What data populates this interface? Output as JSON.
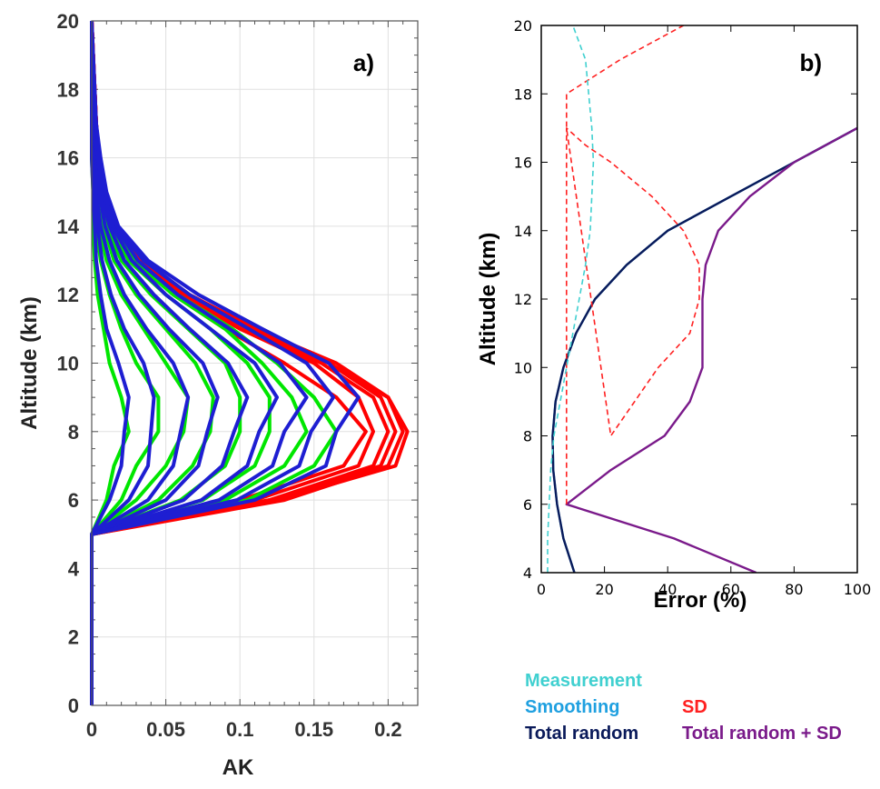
{
  "chart_data": [
    {
      "type": "line",
      "panel_label": "a)",
      "xlabel": "AK",
      "ylabel": "Altitude (km)",
      "xlim": [
        0,
        0.22
      ],
      "ylim": [
        0,
        20
      ],
      "xticks": [
        "0",
        "0.05",
        "0.1",
        "0.15",
        "0.2"
      ],
      "yticks": [
        "0",
        "2",
        "4",
        "6",
        "8",
        "10",
        "12",
        "14",
        "16",
        "18",
        "20"
      ],
      "grid": true,
      "colors": {
        "red": "#ff0000",
        "green": "#00e600",
        "blue": "#1e1ed2"
      },
      "altitudes": [
        0,
        5,
        6,
        7,
        8,
        9,
        10,
        11,
        12,
        13,
        14,
        15,
        16,
        17,
        18,
        19,
        20
      ],
      "series": [
        {
          "color": "red",
          "values": [
            0,
            0,
            0.1,
            0.17,
            0.185,
            0.165,
            0.13,
            0.09,
            0.055,
            0.03,
            0.015,
            0.008,
            0.005,
            0.003,
            0.002,
            0.001,
            0
          ]
        },
        {
          "color": "red",
          "values": [
            0,
            0,
            0.11,
            0.18,
            0.19,
            0.18,
            0.15,
            0.1,
            0.06,
            0.032,
            0.016,
            0.008,
            0.005,
            0.003,
            0.002,
            0.001,
            0
          ]
        },
        {
          "color": "red",
          "values": [
            0,
            0,
            0.12,
            0.19,
            0.2,
            0.19,
            0.155,
            0.105,
            0.062,
            0.033,
            0.016,
            0.008,
            0.005,
            0.003,
            0.002,
            0.001,
            0
          ]
        },
        {
          "color": "red",
          "values": [
            0,
            0,
            0.12,
            0.195,
            0.205,
            0.195,
            0.16,
            0.108,
            0.064,
            0.034,
            0.016,
            0.008,
            0.005,
            0.003,
            0.002,
            0.001,
            0
          ]
        },
        {
          "color": "red",
          "values": [
            0,
            0,
            0.13,
            0.2,
            0.21,
            0.2,
            0.165,
            0.11,
            0.066,
            0.035,
            0.017,
            0.008,
            0.005,
            0.003,
            0.002,
            0.001,
            0
          ]
        },
        {
          "color": "red",
          "values": [
            0,
            0,
            0.125,
            0.205,
            0.213,
            0.2,
            0.16,
            0.112,
            0.065,
            0.035,
            0.017,
            0.008,
            0.005,
            0.003,
            0.002,
            0.001,
            0
          ]
        },
        {
          "color": "green",
          "values": [
            0,
            0,
            0.01,
            0.015,
            0.025,
            0.02,
            0.012,
            0.008,
            0.004,
            0.002,
            0.001,
            0.001,
            0,
            0,
            0,
            0,
            0
          ]
        },
        {
          "color": "green",
          "values": [
            0,
            0,
            0.02,
            0.03,
            0.045,
            0.045,
            0.03,
            0.02,
            0.012,
            0.006,
            0.003,
            0.002,
            0.001,
            0,
            0,
            0,
            0
          ]
        },
        {
          "color": "green",
          "values": [
            0,
            0,
            0.03,
            0.05,
            0.062,
            0.065,
            0.05,
            0.035,
            0.02,
            0.01,
            0.005,
            0.003,
            0.002,
            0.001,
            0,
            0,
            0
          ]
        },
        {
          "color": "green",
          "values": [
            0,
            0,
            0.045,
            0.068,
            0.08,
            0.082,
            0.07,
            0.05,
            0.03,
            0.015,
            0.008,
            0.004,
            0.002,
            0.001,
            0,
            0,
            0
          ]
        },
        {
          "color": "green",
          "values": [
            0,
            0,
            0.06,
            0.09,
            0.1,
            0.1,
            0.09,
            0.065,
            0.04,
            0.02,
            0.01,
            0.005,
            0.003,
            0.001,
            0,
            0,
            0
          ]
        },
        {
          "color": "green",
          "values": [
            0,
            0,
            0.075,
            0.11,
            0.12,
            0.12,
            0.105,
            0.08,
            0.05,
            0.025,
            0.012,
            0.006,
            0.003,
            0.001,
            0,
            0,
            0
          ]
        },
        {
          "color": "green",
          "values": [
            0,
            0,
            0.09,
            0.13,
            0.145,
            0.135,
            0.115,
            0.09,
            0.055,
            0.028,
            0.013,
            0.007,
            0.004,
            0.002,
            0,
            0,
            0
          ]
        },
        {
          "color": "green",
          "values": [
            0,
            0,
            0.105,
            0.15,
            0.165,
            0.15,
            0.125,
            0.095,
            0.058,
            0.03,
            0.015,
            0.008,
            0.004,
            0.002,
            0,
            0,
            0
          ]
        },
        {
          "color": "blue",
          "values": [
            0,
            0,
            0.012,
            0.02,
            0.022,
            0.025,
            0.018,
            0.01,
            0.006,
            0.003,
            0.002,
            0.001,
            0,
            0,
            0,
            0,
            0
          ]
        },
        {
          "color": "blue",
          "values": [
            0,
            0,
            0.025,
            0.038,
            0.04,
            0.042,
            0.035,
            0.022,
            0.013,
            0.007,
            0.004,
            0.002,
            0.001,
            0,
            0,
            0,
            0
          ]
        },
        {
          "color": "blue",
          "values": [
            0,
            0,
            0.038,
            0.055,
            0.06,
            0.065,
            0.055,
            0.037,
            0.022,
            0.012,
            0.006,
            0.003,
            0.002,
            0.001,
            0,
            0,
            0
          ]
        },
        {
          "color": "blue",
          "values": [
            0,
            0,
            0.05,
            0.072,
            0.078,
            0.085,
            0.075,
            0.052,
            0.032,
            0.017,
            0.009,
            0.005,
            0.003,
            0.001,
            0,
            0,
            0
          ]
        },
        {
          "color": "blue",
          "values": [
            0,
            0,
            0.062,
            0.088,
            0.096,
            0.105,
            0.092,
            0.066,
            0.042,
            0.022,
            0.012,
            0.006,
            0.003,
            0.001,
            0,
            0,
            0
          ]
        },
        {
          "color": "blue",
          "values": [
            0,
            0,
            0.074,
            0.105,
            0.113,
            0.125,
            0.11,
            0.08,
            0.05,
            0.027,
            0.014,
            0.007,
            0.004,
            0.002,
            0,
            0,
            0
          ]
        },
        {
          "color": "blue",
          "values": [
            0,
            0,
            0.086,
            0.122,
            0.13,
            0.145,
            0.127,
            0.093,
            0.058,
            0.031,
            0.016,
            0.008,
            0.004,
            0.002,
            0.001,
            0,
            0
          ]
        },
        {
          "color": "blue",
          "values": [
            0,
            0,
            0.098,
            0.14,
            0.148,
            0.163,
            0.145,
            0.106,
            0.066,
            0.035,
            0.017,
            0.009,
            0.005,
            0.003,
            0.001,
            0,
            0
          ]
        },
        {
          "color": "blue",
          "values": [
            0,
            0,
            0.11,
            0.158,
            0.165,
            0.18,
            0.16,
            0.115,
            0.072,
            0.038,
            0.018,
            0.01,
            0.006,
            0.003,
            0.002,
            0.001,
            0
          ]
        }
      ]
    },
    {
      "type": "line",
      "panel_label": "b)",
      "xlabel": "Error (%)",
      "ylabel": "Altitude (km)",
      "xlim": [
        0,
        100
      ],
      "ylim": [
        4,
        20
      ],
      "xticks": [
        "0",
        "20",
        "40",
        "60",
        "80",
        "100"
      ],
      "yticks": [
        "4",
        "6",
        "8",
        "10",
        "12",
        "14",
        "16",
        "18",
        "20"
      ],
      "grid": false,
      "series": [
        {
          "name": "Measurement",
          "color": "#40d0d0",
          "style": "dashed",
          "x": [
            2,
            2,
            2.5,
            3,
            4,
            6,
            8,
            10,
            12,
            14,
            15.5,
            16.5,
            16,
            14,
            10
          ],
          "y": [
            4,
            5,
            6,
            7,
            8,
            9,
            10,
            11,
            12,
            13,
            14,
            16,
            17,
            19,
            20
          ]
        },
        {
          "name": "Smoothing",
          "color": "#1fa0e0",
          "style": "solid",
          "x": [
            10.5,
            7,
            5,
            3.8,
            3.6,
            4.5,
            7,
            11,
            17,
            27,
            40,
            60,
            80,
            100
          ],
          "y": [
            4,
            5,
            6,
            7,
            8,
            9,
            10,
            11,
            12,
            13,
            14,
            15,
            16,
            17
          ]
        },
        {
          "name": "SD",
          "color": "#ff2020",
          "style": "dashed",
          "x": [
            8,
            8,
            14,
            22,
            35,
            45,
            50,
            50,
            47,
            37,
            22,
            8,
            8,
            25,
            45
          ],
          "y": [
            6,
            17,
            16.5,
            16,
            15,
            14,
            13,
            12,
            11,
            10,
            8,
            17,
            18,
            19,
            20
          ]
        },
        {
          "name": "Total random",
          "color": "#0a1a5a",
          "style": "solid",
          "x": [
            10.5,
            7,
            5,
            3.8,
            3.6,
            4.5,
            7,
            11,
            17,
            27,
            40,
            60,
            80,
            100
          ],
          "y": [
            4,
            5,
            6,
            7,
            8,
            9,
            10,
            11,
            12,
            13,
            14,
            15,
            16,
            17
          ]
        },
        {
          "name": "Total random + SD",
          "color": "#7a1a8a",
          "style": "solid",
          "x": [
            68,
            42,
            8,
            22,
            39,
            47,
            51,
            51,
            52,
            56,
            66,
            80,
            100
          ],
          "y": [
            4,
            5,
            6,
            7,
            8,
            9,
            10,
            12,
            13,
            14,
            15,
            16,
            17
          ]
        }
      ]
    }
  ]
}
